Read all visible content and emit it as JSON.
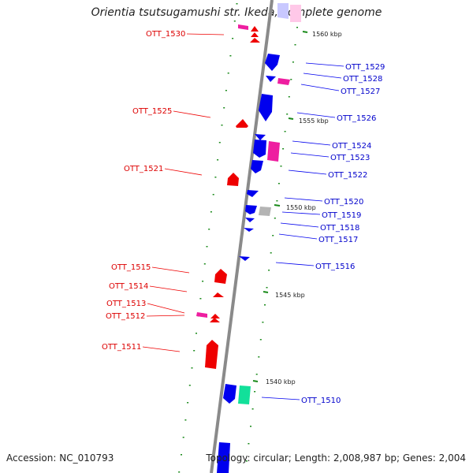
{
  "title": "Orientia tsutsugamushi str. Ikeda, complete genome",
  "accession": "Accession: NC_010793",
  "summary": "Topology: circular; Length: 2,008,987 bp; Genes: 2,004",
  "colors": {
    "forward": "#ee0000",
    "reverse": "#0000ee",
    "pink": "#ee1ea0",
    "grey": "#b4b4b4",
    "green": "#12e09a",
    "backbone": "#888888",
    "tick": "#1a8a1a"
  },
  "ticks": [
    {
      "label": "1560 kbp"
    },
    {
      "label": "1555 kbp"
    },
    {
      "label": "1550 kbp"
    },
    {
      "label": "1545 kbp"
    },
    {
      "label": "1540 kbp"
    }
  ],
  "left_labels": [
    {
      "text": "OTT_1530"
    },
    {
      "text": "OTT_1525"
    },
    {
      "text": "OTT_1521"
    },
    {
      "text": "OTT_1515"
    },
    {
      "text": "OTT_1514"
    },
    {
      "text": "OTT_1513"
    },
    {
      "text": "OTT_1512"
    },
    {
      "text": "OTT_1511"
    }
  ],
  "right_labels": [
    {
      "text": "OTT_1529"
    },
    {
      "text": "OTT_1528"
    },
    {
      "text": "OTT_1527"
    },
    {
      "text": "OTT_1526"
    },
    {
      "text": "OTT_1524"
    },
    {
      "text": "OTT_1523"
    },
    {
      "text": "OTT_1522"
    },
    {
      "text": "OTT_1520"
    },
    {
      "text": "OTT_1519"
    },
    {
      "text": "OTT_1518"
    },
    {
      "text": "OTT_1517"
    },
    {
      "text": "OTT_1516"
    },
    {
      "text": "OTT_1510"
    }
  ]
}
